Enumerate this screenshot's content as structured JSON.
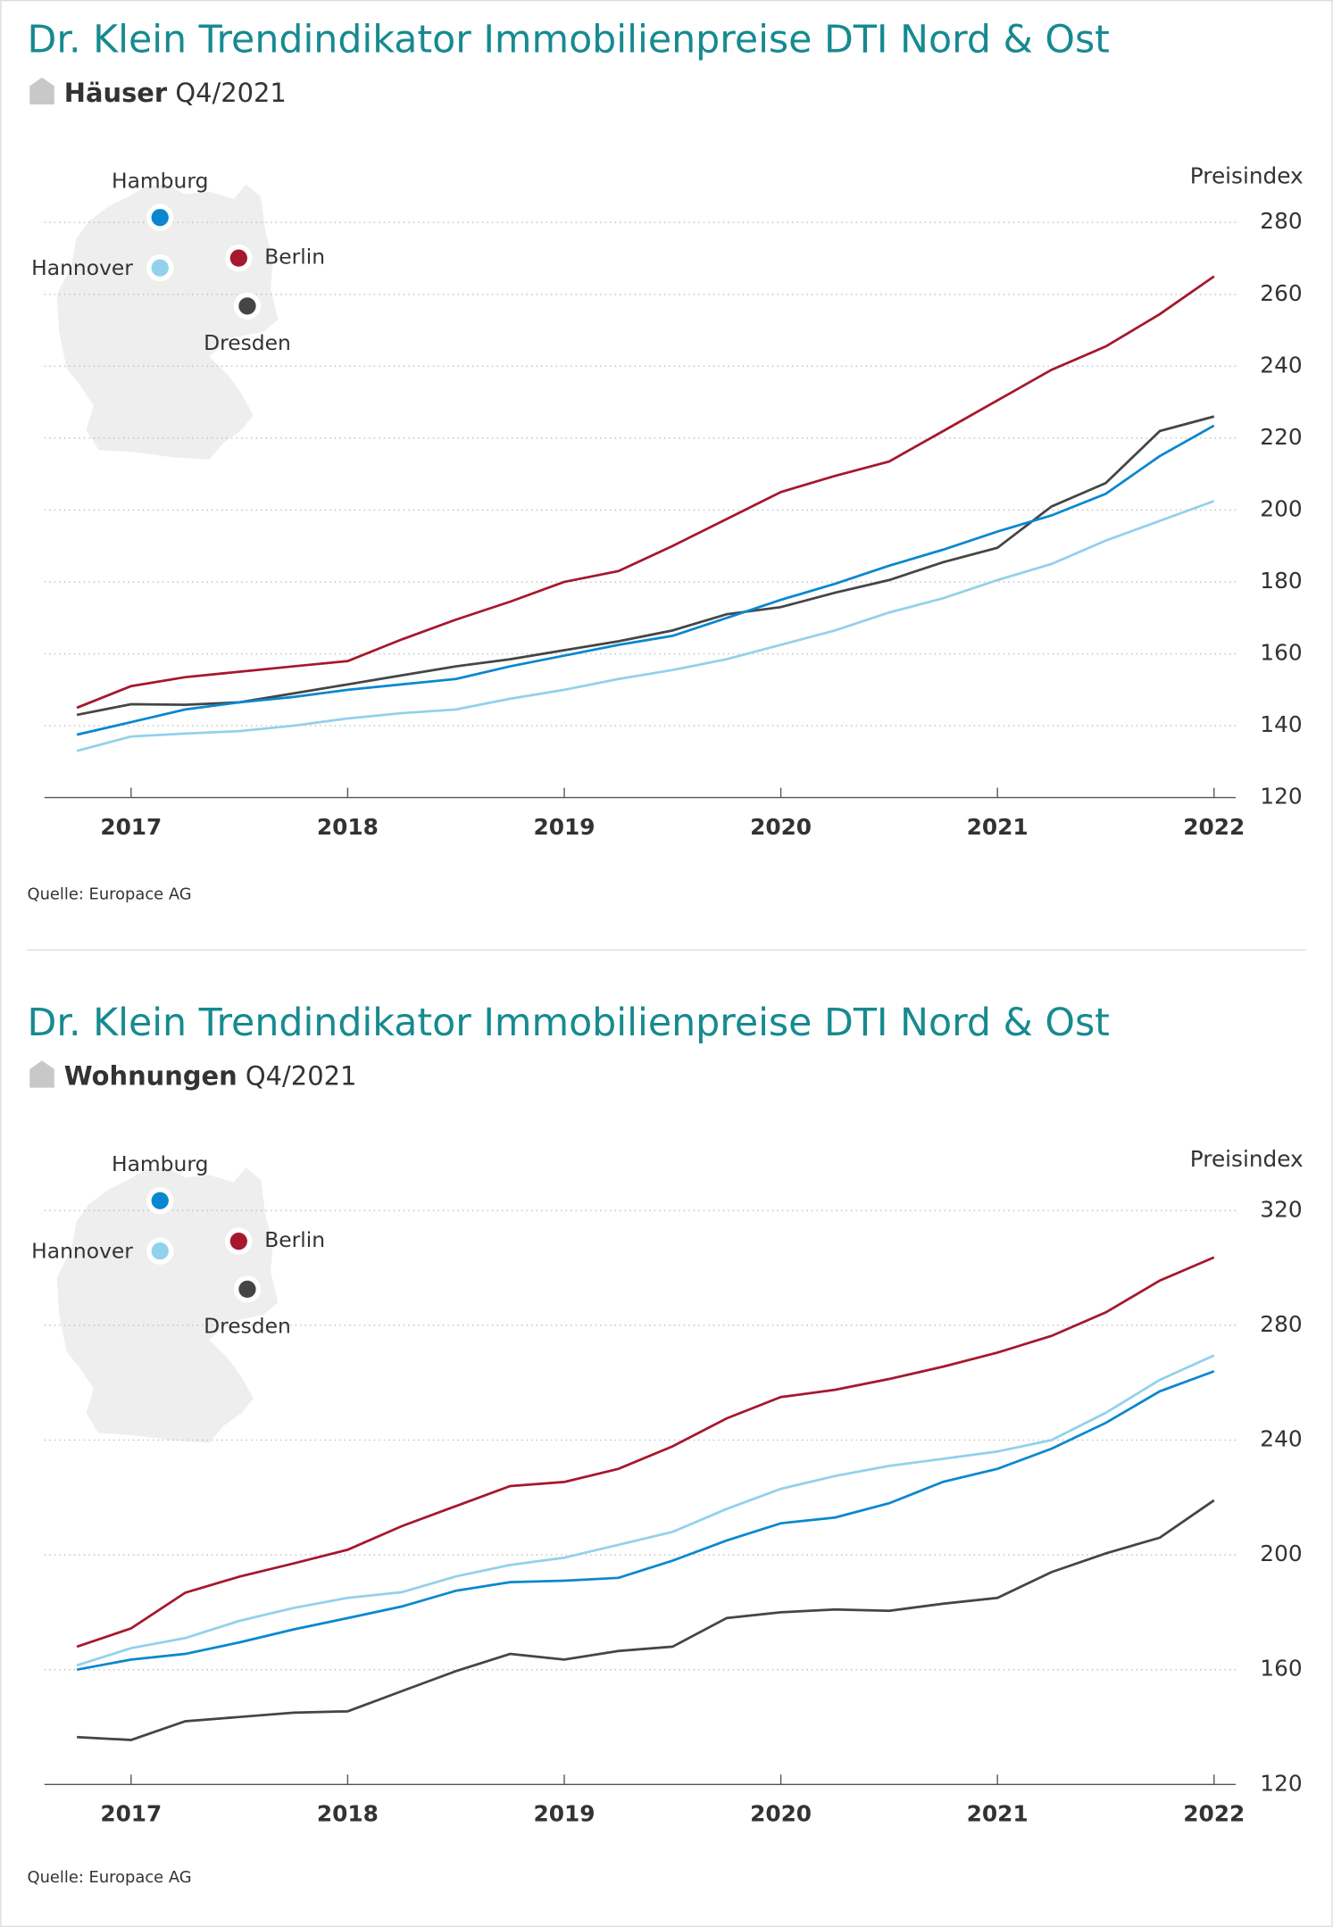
{
  "chart_data": [
    {
      "type": "line",
      "title": "Dr. Klein Trendindikator Immobilienpreise DTI Nord & Ost",
      "subtitle_bold": "Häuser",
      "subtitle": "Q4/2021",
      "y_axis_label": "Preisindex",
      "source": "Quelle: Europace AG",
      "x": [
        2016.75,
        2017,
        2017.25,
        2017.5,
        2017.75,
        2018,
        2018.25,
        2018.5,
        2018.75,
        2019,
        2019.25,
        2019.5,
        2019.75,
        2020,
        2020.25,
        2020.5,
        2020.75,
        2021,
        2021.25,
        2021.5,
        2021.75,
        2022
      ],
      "xlim": [
        2016.6,
        2022.1
      ],
      "xticks": [
        2017,
        2018,
        2019,
        2020,
        2021,
        2022
      ],
      "ylim": [
        120,
        280
      ],
      "yticks": [
        120,
        140,
        160,
        180,
        200,
        220,
        240,
        260,
        280
      ],
      "grid": true,
      "series": [
        {
          "name": "Hannover",
          "color": "#92d1ec",
          "values": [
            133,
            137,
            137.8,
            138.5,
            140,
            142,
            143.5,
            144.5,
            147.5,
            150,
            153,
            155.5,
            158.5,
            162.5,
            166.5,
            171.5,
            175.5,
            180.5,
            185,
            191.5,
            197,
            202.5
          ]
        },
        {
          "name": "Dresden",
          "color": "#454545",
          "values": [
            143,
            146,
            145.8,
            146.5,
            149,
            151.5,
            154,
            156.5,
            158.5,
            161,
            163.5,
            166.5,
            171,
            173,
            177,
            180.5,
            185.5,
            189.5,
            201,
            207.5,
            222,
            226
          ]
        },
        {
          "name": "Hamburg",
          "color": "#0a87cf",
          "values": [
            137.5,
            141,
            144.5,
            146.5,
            148,
            150,
            151.5,
            153,
            156.5,
            159.5,
            162.5,
            165,
            170,
            175,
            179.5,
            184.5,
            189,
            194,
            198.5,
            204.5,
            215,
            223.5
          ]
        },
        {
          "name": "Berlin",
          "color": "#a5182d",
          "values": [
            145,
            151,
            153.5,
            155,
            156.5,
            158,
            164,
            169.5,
            174.5,
            180,
            183,
            190,
            197.5,
            205,
            209.5,
            213.5,
            222,
            230.5,
            239,
            245.5,
            254.5,
            265
          ]
        }
      ]
    },
    {
      "type": "line",
      "title": "Dr. Klein Trendindikator Immobilienpreise DTI Nord & Ost",
      "subtitle_bold": "Wohnungen",
      "subtitle": "Q4/2021",
      "y_axis_label": "Preisindex",
      "source": "Quelle: Europace AG",
      "x": [
        2016.75,
        2017,
        2017.25,
        2017.5,
        2017.75,
        2018,
        2018.25,
        2018.5,
        2018.75,
        2019,
        2019.25,
        2019.5,
        2019.75,
        2020,
        2020.25,
        2020.5,
        2020.75,
        2021,
        2021.25,
        2021.5,
        2021.75,
        2022
      ],
      "xlim": [
        2016.6,
        2022.1
      ],
      "xticks": [
        2017,
        2018,
        2019,
        2020,
        2021,
        2022
      ],
      "ylim": [
        120,
        320
      ],
      "yticks": [
        120,
        160,
        200,
        240,
        280,
        320
      ],
      "grid": true,
      "series": [
        {
          "name": "Hannover",
          "color": "#92d1ec",
          "values": [
            161.5,
            167.5,
            171,
            177,
            181.5,
            185,
            187,
            192.5,
            196.5,
            199,
            203.5,
            208,
            216,
            223,
            227.5,
            231,
            233.5,
            236,
            240,
            249.5,
            261,
            269.5
          ]
        },
        {
          "name": "Dresden",
          "color": "#454545",
          "values": [
            136.5,
            135.5,
            142,
            143.5,
            145,
            145.5,
            152.5,
            159.5,
            165.5,
            163.5,
            166.5,
            168,
            178,
            180,
            181,
            180.5,
            183,
            185,
            194,
            200.5,
            206,
            219
          ]
        },
        {
          "name": "Hamburg",
          "color": "#0a87cf",
          "values": [
            160,
            163.5,
            165.5,
            169.5,
            174,
            178,
            182,
            187.5,
            190.5,
            191,
            192,
            198,
            205,
            211,
            213,
            218,
            225.5,
            230,
            237,
            246,
            257,
            264
          ]
        },
        {
          "name": "Berlin",
          "color": "#a5182d",
          "values": [
            168,
            174.4,
            186.8,
            192.4,
            197,
            201.8,
            210,
            217,
            224,
            225.4,
            230,
            237.8,
            247.6,
            255,
            257.5,
            261.3,
            265.6,
            270.5,
            276.3,
            284.5,
            295.6,
            303.7
          ]
        }
      ]
    }
  ]
}
